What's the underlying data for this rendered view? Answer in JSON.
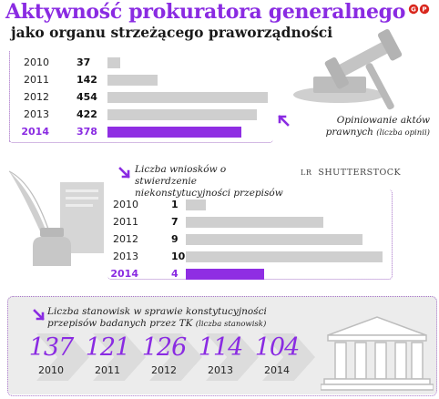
{
  "title": "Aktywność prokuratora generalnego",
  "subtitle": "jako organu strzeżącego praworządności",
  "credit": "SHUTTERSTOCK",
  "colors": {
    "accent": "#8a2be2",
    "bar_gray": "#cfcfcf",
    "bar_highlight": "#8f2ee3"
  },
  "icons": [
    "gavel-icon",
    "feather-quill-icon",
    "document-icon",
    "inkwell-icon",
    "courthouse-icon",
    "arrow-up-left-icon",
    "arrow-down-right-icon"
  ],
  "panel1": {
    "caption": "Opiniowanie aktów prawnych",
    "caption_unit": "(liczba opinii)"
  },
  "panel2": {
    "caption": "Liczba wniosków o stwierdzenie niekonstytucyjności przepisów"
  },
  "panel3": {
    "caption": "Liczba stanowisk w sprawie konstytucyjności przepisów badanych przez TK",
    "caption_unit": "(liczba stanowisk)"
  },
  "chart_data": [
    {
      "type": "bar",
      "orientation": "horizontal",
      "title": "Opiniowanie aktów prawnych",
      "unit": "(liczba opinii)",
      "categories": [
        "2010",
        "2011",
        "2012",
        "2013",
        "2014"
      ],
      "values": [
        37,
        142,
        454,
        422,
        378
      ],
      "highlight": "2014"
    },
    {
      "type": "bar",
      "orientation": "horizontal",
      "title": "Liczba wniosków o stwierdzenie niekonstytucyjności przepisów",
      "categories": [
        "2010",
        "2011",
        "2012",
        "2013",
        "2014"
      ],
      "values": [
        1,
        7,
        9,
        10,
        4
      ],
      "highlight": "2014"
    },
    {
      "type": "table",
      "title": "Liczba stanowisk w sprawie konstytucyjności przepisów badanych przez TK",
      "unit": "(liczba stanowisk)",
      "categories": [
        "2010",
        "2011",
        "2012",
        "2013",
        "2014"
      ],
      "values": [
        137,
        121,
        126,
        114,
        104
      ]
    }
  ]
}
